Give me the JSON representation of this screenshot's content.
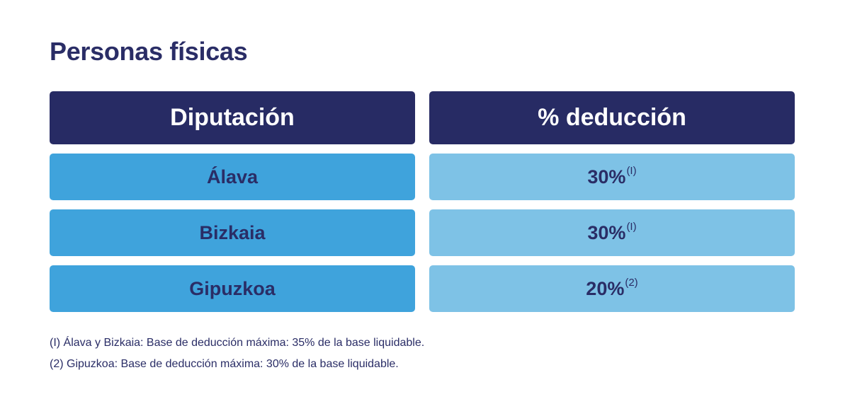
{
  "title": "Personas físicas",
  "table": {
    "headers": [
      "Diputación",
      "% deducción"
    ],
    "rows": [
      {
        "diputacion": "Álava",
        "deduccion": "30%",
        "note": "(I)"
      },
      {
        "diputacion": "Bizkaia",
        "deduccion": "30%",
        "note": "(I)"
      },
      {
        "diputacion": "Gipuzkoa",
        "deduccion": "20%",
        "note": "(2)"
      }
    ]
  },
  "notes": [
    "(I) Álava y Bizkaia: Base de deducción máxima: 35% de la base liquidable.",
    "(2) Gipuzkoa: Base de deducción máxima: 30% de la base liquidable."
  ],
  "colors": {
    "header_bg": "#272b64",
    "left_cell_bg": "#3fa3dc",
    "right_cell_bg": "#7ec2e6",
    "text": "#2a2d66"
  }
}
